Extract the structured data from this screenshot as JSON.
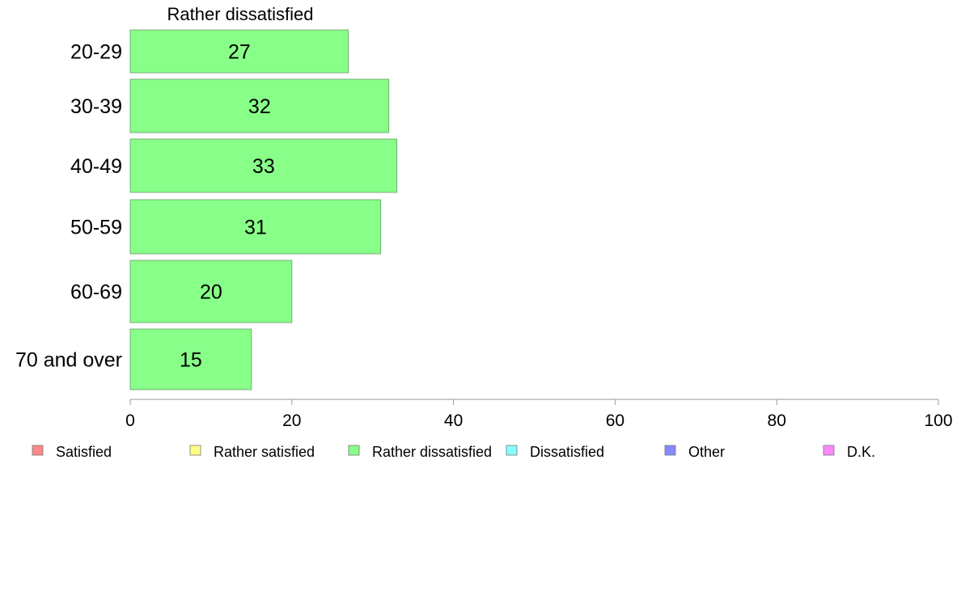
{
  "chart_data": {
    "type": "bar",
    "orientation": "horizontal",
    "title": "Rather dissatisfied",
    "categories": [
      "20-29",
      "30-39",
      "40-49",
      "50-59",
      "60-69",
      "70 and over"
    ],
    "values": [
      27,
      32,
      33,
      31,
      20,
      15
    ],
    "value_labels": [
      "27",
      "32",
      "33",
      "31",
      "20",
      "15"
    ],
    "xlim": [
      0,
      100
    ],
    "xticks": [
      0,
      20,
      40,
      60,
      80,
      100
    ],
    "xlabel": "",
    "ylabel": "",
    "grid": false,
    "bar_color": "#88ff88",
    "legend_position": "bottom",
    "legend": [
      {
        "label": "Satisfied",
        "color": "#ff8888"
      },
      {
        "label": "Rather satisfied",
        "color": "#ffff88"
      },
      {
        "label": "Rather dissatisfied",
        "color": "#88ff88"
      },
      {
        "label": "Dissatisfied",
        "color": "#88ffff"
      },
      {
        "label": "Other",
        "color": "#8888ff"
      },
      {
        "label": "D.K.",
        "color": "#ff88ff"
      }
    ]
  }
}
